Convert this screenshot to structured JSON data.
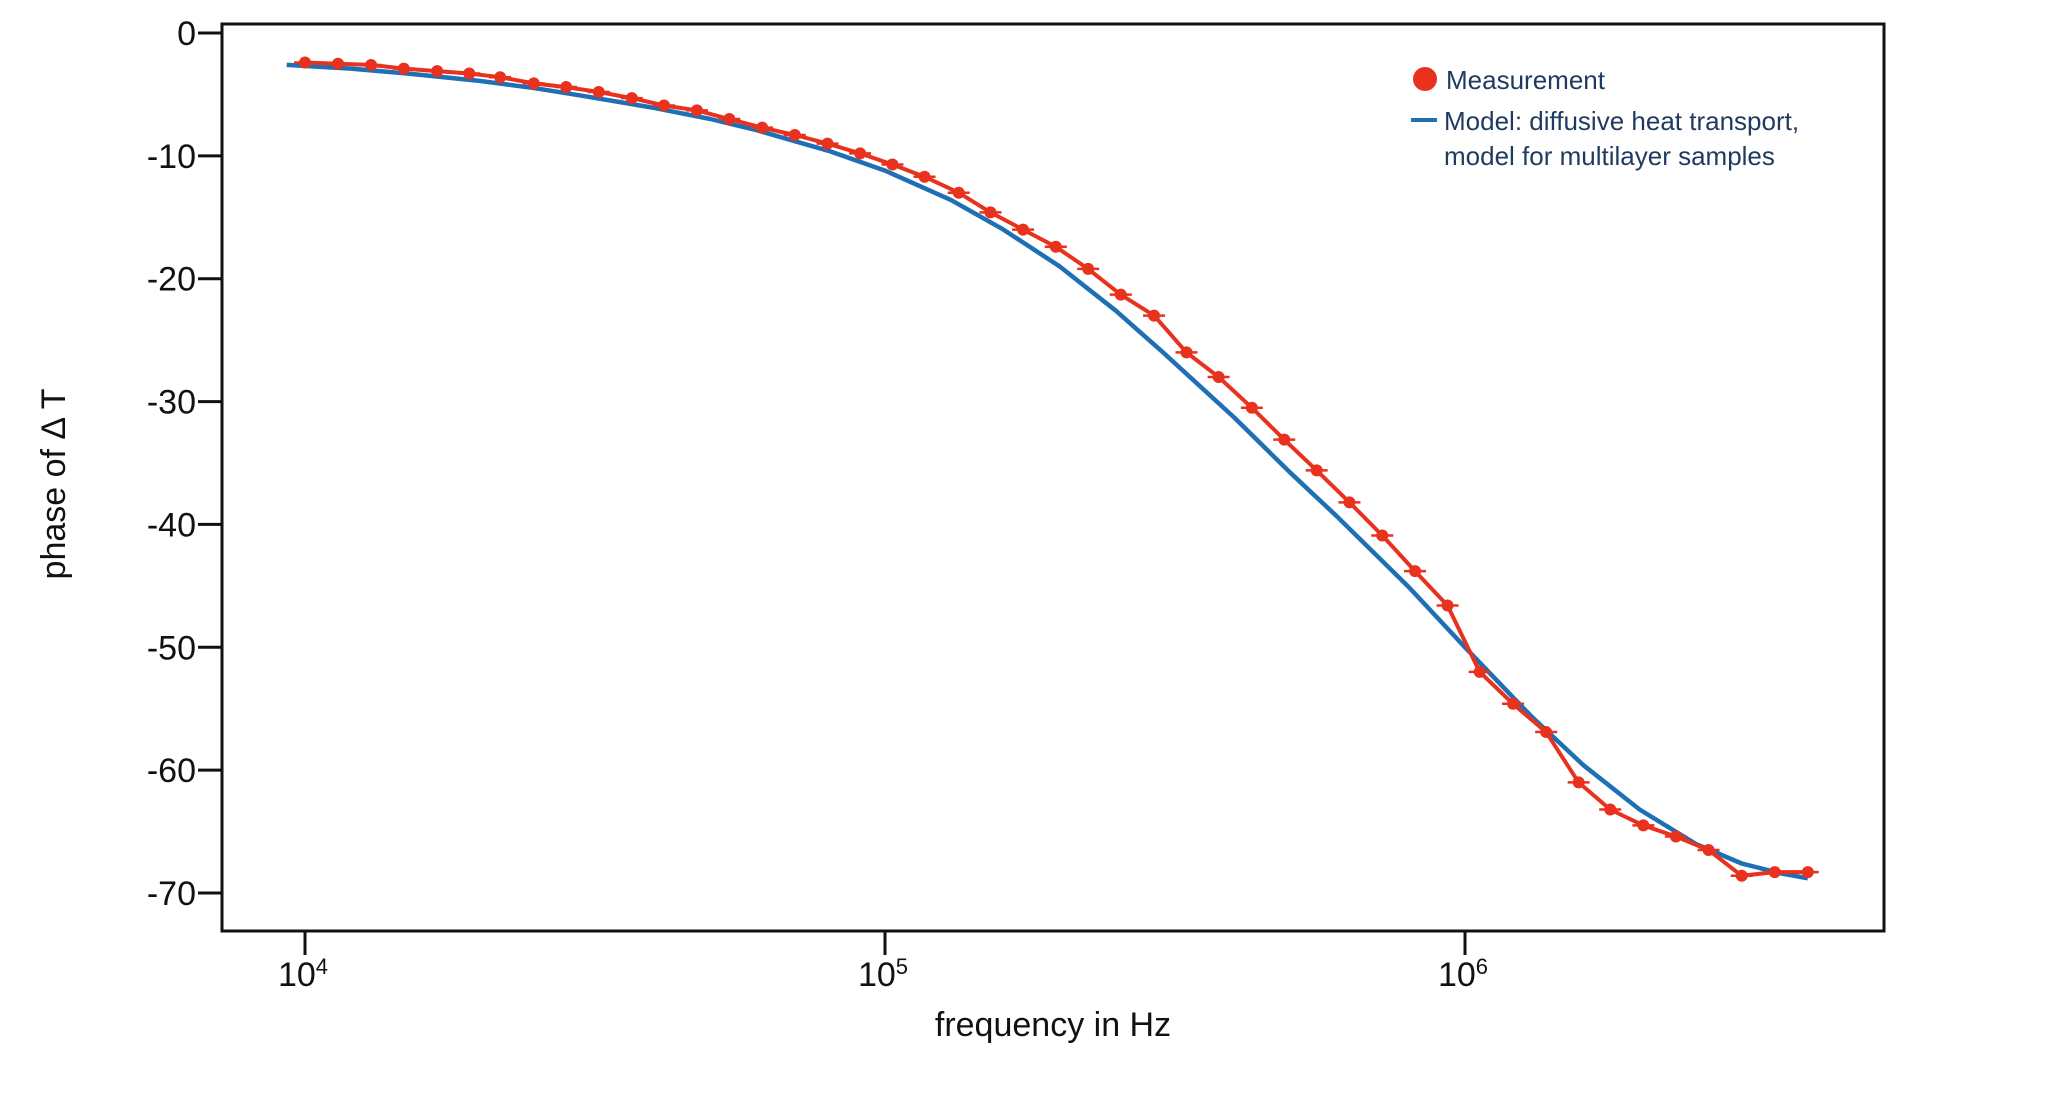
{
  "chart_data": {
    "type": "line",
    "title": "",
    "xlabel": "frequency in Hz",
    "ylabel": "phase of Δ T",
    "xscale": "log",
    "xlim": [
      8500,
      4500000
    ],
    "ylim": [
      -73,
      1
    ],
    "x_ticks": [
      {
        "value": 10000,
        "base": "10",
        "exp": "4"
      },
      {
        "value": 100000,
        "base": "10",
        "exp": "5"
      },
      {
        "value": 1000000,
        "base": "10",
        "exp": "6"
      }
    ],
    "y_ticks": [
      0,
      -10,
      -20,
      -30,
      -40,
      -50,
      -60,
      -70
    ],
    "grid": false,
    "legend": {
      "position": "top-right",
      "measurement_label": "Measurement",
      "model_label_line1": "Model: diffusive heat transport,",
      "model_label_line2": "model for multilayer samples"
    },
    "colors": {
      "measurement": "#e8321e",
      "model": "#1f6fb5",
      "axis": "#111111",
      "legend_text": "#1f3a5f"
    },
    "series": [
      {
        "name": "Measurement",
        "style": "line-markers-errorbars",
        "x": [
          10000,
          11400,
          13000,
          14800,
          16900,
          19200,
          21700,
          24800,
          28200,
          32100,
          36600,
          41600,
          47400,
          53900,
          61400,
          69900,
          79600,
          90600,
          103000,
          117000,
          134000,
          152000,
          173000,
          197000,
          224000,
          255000,
          291000,
          331000,
          376000,
          429000,
          488000,
          555000,
          632000,
          720000,
          820000,
          933000,
          1060000,
          1210000,
          1380000,
          1570000,
          1780000,
          2030000,
          2310000,
          2630000,
          3000000,
          3420000,
          3900000
        ],
        "y": [
          -2.4,
          -2.5,
          -2.6,
          -2.9,
          -3.1,
          -3.3,
          -3.6,
          -4.1,
          -4.4,
          -4.8,
          -5.3,
          -5.9,
          -6.3,
          -7.0,
          -7.7,
          -8.3,
          -9.0,
          -9.8,
          -10.7,
          -11.7,
          -13.0,
          -14.6,
          -16.0,
          -17.4,
          -19.2,
          -21.3,
          -23.0,
          -26.0,
          -28.0,
          -30.5,
          -33.1,
          -35.6,
          -38.2,
          -40.9,
          -43.8,
          -46.6,
          -52.0,
          -54.6,
          -56.9,
          -61.0,
          -63.2,
          -64.5,
          -65.4,
          -66.5,
          -68.6,
          -68.3,
          -68.3
        ],
        "yerr": 0.4
      },
      {
        "name": "Model: diffusive heat transport, model for multilayer samples",
        "style": "line",
        "x": [
          9300,
          12000,
          15000,
          20000,
          25000,
          30000,
          40000,
          50000,
          60000,
          80000,
          100000,
          130000,
          160000,
          200000,
          250000,
          300000,
          400000,
          500000,
          600000,
          800000,
          1000000,
          1300000,
          1600000,
          2000000,
          2500000,
          3000000,
          3500000,
          3900000
        ],
        "y": [
          -2.6,
          -2.9,
          -3.3,
          -3.9,
          -4.5,
          -5.1,
          -6.1,
          -7.0,
          -7.9,
          -9.6,
          -11.2,
          -13.6,
          -16.0,
          -19.0,
          -22.6,
          -25.9,
          -31.3,
          -35.8,
          -39.3,
          -45.1,
          -50.0,
          -55.6,
          -59.6,
          -63.2,
          -66.0,
          -67.6,
          -68.4,
          -68.8
        ]
      }
    ]
  }
}
